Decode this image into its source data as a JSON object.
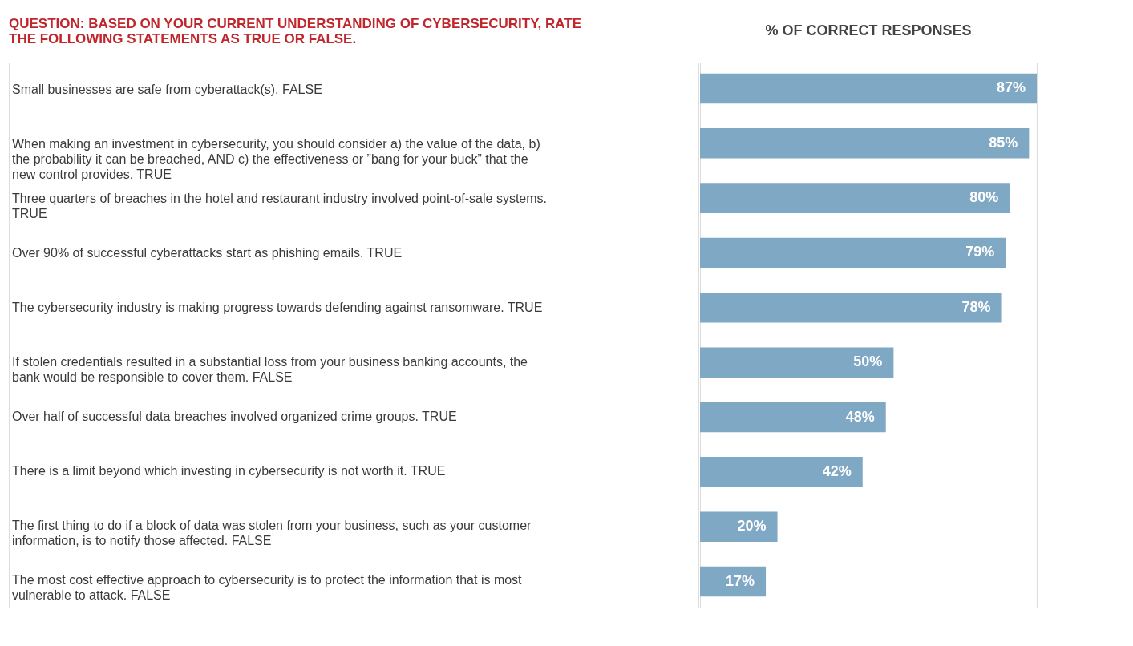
{
  "chart_data": {
    "type": "bar",
    "orientation": "horizontal",
    "ylabel": "QUESTION: BASED ON YOUR CURRENT UNDERSTANDING OF CYBERSECURITY, RATE THE FOLLOWING STATEMENTS AS TRUE OR FALSE.",
    "xlabel": "% OF CORRECT RESPONSES",
    "categories": [
      "Small businesses are safe from cyberattack(s). FALSE",
      "When making an investment in cybersecurity, you should consider a) the value of the data, b) the probability it can be breached, AND c) the effectiveness or ”bang for your buck” that the new control provides. TRUE",
      "Three quarters of breaches in the hotel and restaurant industry involved point-of-sale systems. TRUE",
      "Over 90% of successful cyberattacks start as phishing emails. TRUE",
      "The cybersecurity industry is making progress towards defending against ransomware. TRUE",
      "If stolen credentials resulted in a substantial loss from your business banking accounts, the bank would be responsible to cover them. FALSE",
      "Over half of successful data breaches involved organized crime groups. TRUE",
      "There is a limit beyond which investing in cybersecurity is not worth it. TRUE",
      "The first thing to do if a block of data was stolen from your business, such as your customer information, is to notify those affected. FALSE",
      "The most cost effective approach to cybersecurity is to protect the information that is most vulnerable to attack. FALSE"
    ],
    "values": [
      87,
      85,
      80,
      79,
      78,
      50,
      48,
      42,
      20,
      17
    ],
    "value_labels": [
      "87%",
      "85%",
      "80%",
      "79%",
      "78%",
      "50%",
      "48%",
      "42%",
      "20%",
      "17%"
    ],
    "color": "#7fa8c5"
  }
}
